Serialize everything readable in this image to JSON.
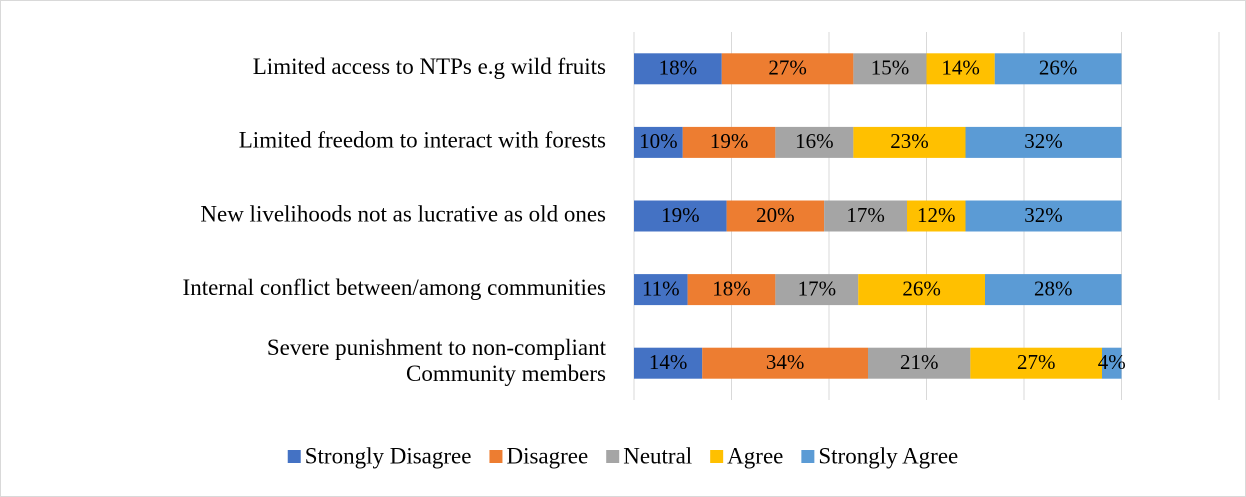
{
  "chart_data": {
    "type": "stacked-bar-horizontal",
    "categories": [
      "Limited access to NTPs e.g wild fruits",
      "Limited freedom to interact with forests",
      "New livelihoods not as lucrative as old ones",
      "Internal conflict between/among communities",
      "Severe punishment to non-compliant\nCommunity members"
    ],
    "series": [
      {
        "name": "Strongly Disagree",
        "color": "#4472c4",
        "values": [
          18,
          10,
          19,
          11,
          14
        ],
        "value_labels": [
          "18%",
          "10%",
          "19%",
          "11%",
          "14%"
        ]
      },
      {
        "name": "Disagree",
        "color": "#ed7d31",
        "values": [
          27,
          19,
          20,
          18,
          34
        ],
        "value_labels": [
          "27%",
          "19%",
          "20%",
          "18%",
          "34%"
        ]
      },
      {
        "name": "Neutral",
        "color": "#a5a5a5",
        "values": [
          15,
          16,
          17,
          17,
          21
        ],
        "value_labels": [
          "15%",
          "16%",
          "17%",
          "17%",
          "21%"
        ]
      },
      {
        "name": "Agree",
        "color": "#ffc000",
        "values": [
          14,
          23,
          12,
          26,
          27
        ],
        "value_labels": [
          "14%",
          "23%",
          "12%",
          "26%",
          "27%"
        ]
      },
      {
        "name": "Strongly Agree",
        "color": "#5b9bd5",
        "values": [
          26,
          32,
          32,
          28,
          4
        ],
        "value_labels": [
          "26%",
          "32%",
          "32%",
          "28%",
          "4%"
        ]
      }
    ],
    "xlim": [
      0,
      120
    ],
    "xticks": [
      0,
      20,
      40,
      60,
      80,
      100,
      120
    ],
    "grid": true,
    "legend": "bottom"
  }
}
